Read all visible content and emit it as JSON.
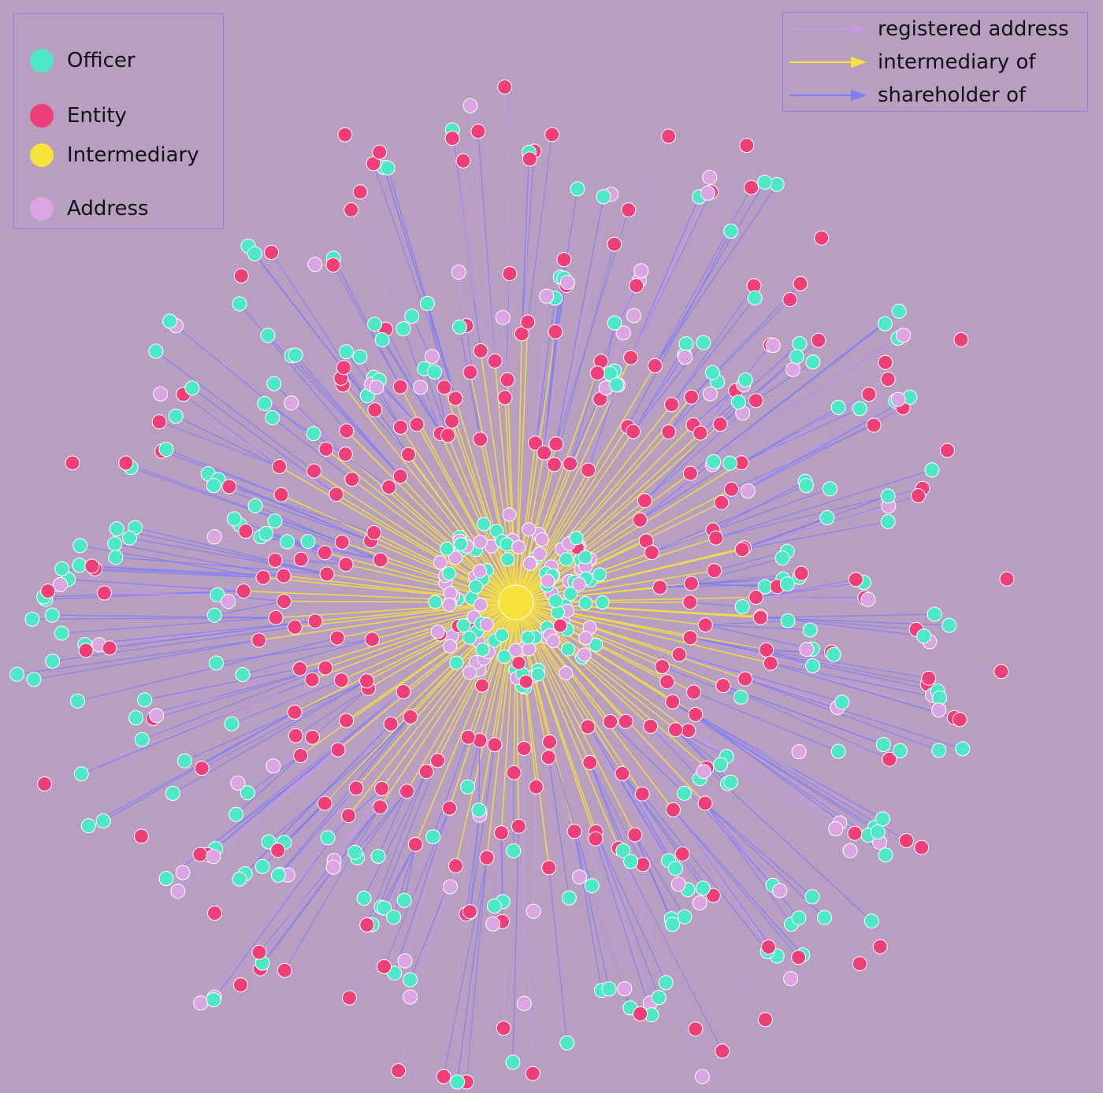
{
  "node_legend": [
    {
      "label": "Officer",
      "color": "#4fe8c6"
    },
    {
      "label": "Entity",
      "color": "#ef3f78"
    },
    {
      "label": "Intermediary",
      "color": "#f7e23c"
    },
    {
      "label": "Address",
      "color": "#dba4e2"
    }
  ],
  "edge_legend": [
    {
      "label": "registered address",
      "color": "#c79ae8"
    },
    {
      "label": "intermediary of",
      "color": "#f7e23c"
    },
    {
      "label": "shareholder of",
      "color": "#7f7cf5"
    }
  ],
  "colors": {
    "background": "#b89fc2",
    "officer": "#4fe8c6",
    "entity": "#ef3f78",
    "intermediary": "#f7e23c",
    "address": "#dba4e2",
    "edge_registered_address": "#c79ae8",
    "edge_intermediary_of": "#f7e23c",
    "edge_shareholder_of": "#7f7cf5"
  }
}
